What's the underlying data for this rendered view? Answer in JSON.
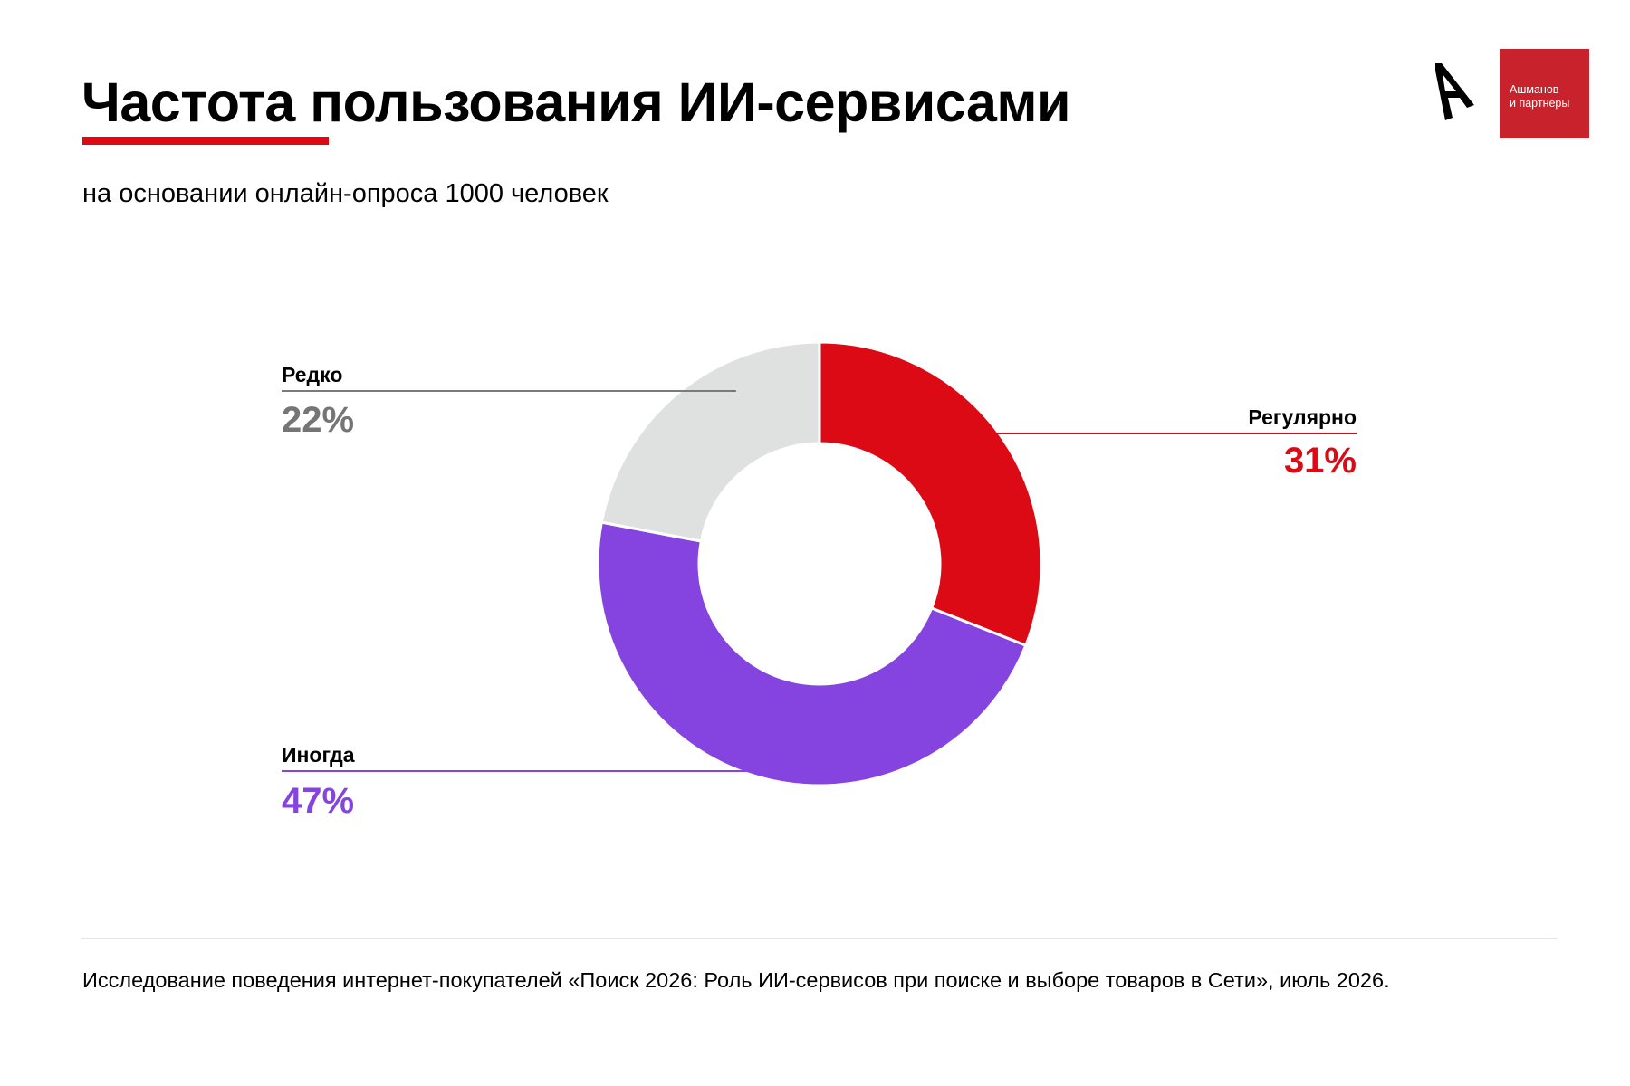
{
  "header": {
    "title": "Частота пользования ИИ-сервисами",
    "subtitle": "на основании онлайн-опроса 1000 человек"
  },
  "brand": {
    "logo_icon": "arrow-a-logo-icon",
    "name_line1": "Ашманов",
    "name_line2": "и партнеры",
    "color": "#c8232c"
  },
  "colors": {
    "accent": "#dc0a14",
    "text": "#000000"
  },
  "chart_data": {
    "type": "pie",
    "donut": true,
    "categories": [
      "Регулярно",
      "Иногда",
      "Редко"
    ],
    "values": [
      31,
      47,
      22
    ],
    "labels": [
      "31%",
      "47%",
      "22%"
    ],
    "colors": [
      "#dc0a14",
      "#8544e0",
      "#dfe1e1"
    ],
    "label_colors": [
      "#dc0a14",
      "#8544e0",
      "#757575"
    ],
    "leader_colors": [
      "#dc0a14",
      "#8544e0",
      "#7a7a7a"
    ],
    "unit": "%"
  },
  "footer": {
    "source": "Исследование поведения интернет-покупателей «Поиск 2026: Роль ИИ-сервисов при поиске и выборе товаров в Сети», июль 2026."
  }
}
